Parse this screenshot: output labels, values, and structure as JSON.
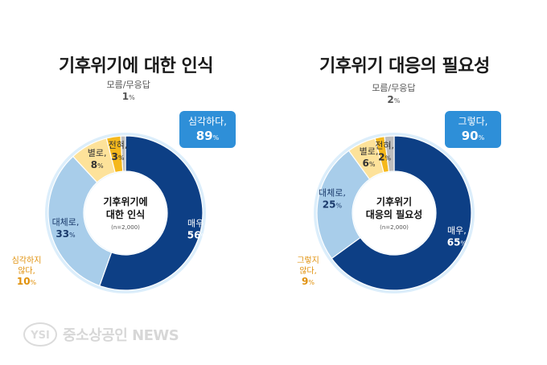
{
  "watermark": {
    "logo_text": "YSI",
    "text": "중소상공인 NEWS"
  },
  "chart_data": [
    {
      "type": "pie",
      "title": "기후위기에 대한 인식",
      "center_label": [
        "기후위기에",
        "대한 인식"
      ],
      "center_note": "(n=2,000)",
      "callout": {
        "label": "심각하다,",
        "value": "89",
        "unit": "%"
      },
      "slices": [
        {
          "name": "매우,",
          "value": 56,
          "color": "#0d3f85",
          "text_color": "#ffffff",
          "label_color": "#ffffff"
        },
        {
          "name": "대체로,",
          "value": 33,
          "color": "#a8cdea",
          "text_color": "#1a3a6b",
          "label_color": "#1a3a6b"
        },
        {
          "name": "별로,",
          "value": 8,
          "color": "#fde29a",
          "text_color": "#333333",
          "label_color": "#333333"
        },
        {
          "name": "전혀,",
          "value": 3,
          "color": "#f5b81c",
          "text_color": "#333333",
          "label_color": "#333333"
        },
        {
          "name": "모름/무응답",
          "value": 1,
          "color": "#bdbdbd",
          "text_color": "#555555",
          "label_color": "#555555"
        }
      ],
      "group_label": {
        "lines": [
          "심각하지",
          "않다,"
        ],
        "value": "10",
        "unit": "%",
        "color": "#e0900a"
      }
    },
    {
      "type": "pie",
      "title": "기후위기 대응의 필요성",
      "center_label": [
        "기후위기",
        "대응의 필요성"
      ],
      "center_note": "(n=2,000)",
      "callout": {
        "label": "그렇다,",
        "value": "90",
        "unit": "%"
      },
      "slices": [
        {
          "name": "매우,",
          "value": 65,
          "color": "#0d3f85",
          "text_color": "#ffffff",
          "label_color": "#ffffff"
        },
        {
          "name": "대체로,",
          "value": 25,
          "color": "#a8cdea",
          "text_color": "#1a3a6b",
          "label_color": "#1a3a6b"
        },
        {
          "name": "별로,",
          "value": 6,
          "color": "#fde29a",
          "text_color": "#333333",
          "label_color": "#333333"
        },
        {
          "name": "전혀,",
          "value": 2,
          "color": "#f5b81c",
          "text_color": "#333333",
          "label_color": "#333333"
        },
        {
          "name": "모름/무응답",
          "value": 2,
          "color": "#bdbdbd",
          "text_color": "#555555",
          "label_color": "#555555"
        }
      ],
      "group_label": {
        "lines": [
          "그렇지",
          "않다,"
        ],
        "value": "9",
        "unit": "%",
        "color": "#e0900a"
      }
    }
  ]
}
